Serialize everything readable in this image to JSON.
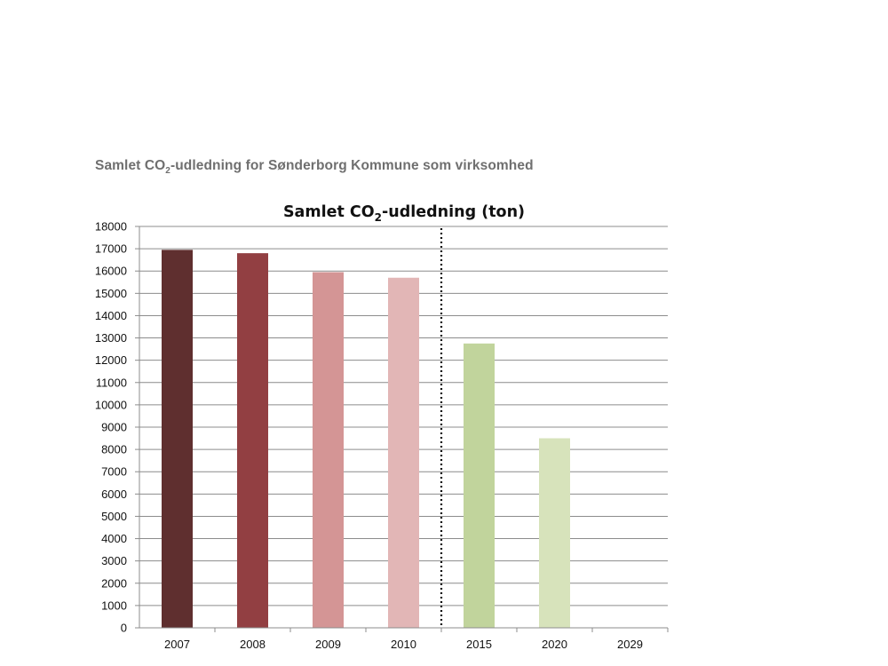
{
  "caption": {
    "prefix": "Samlet CO",
    "sub": "2",
    "suffix": "-udledning for Sønderborg Kommune som virksomhed"
  },
  "chart_data": {
    "type": "bar",
    "title_prefix": "Samlet CO",
    "title_sub": "2",
    "title_suffix": "-udledning (ton)",
    "categories": [
      "2007",
      "2008",
      "2009",
      "2010",
      "2015",
      "2020",
      "2029"
    ],
    "values": [
      16950,
      16800,
      15950,
      15700,
      12750,
      8500,
      0
    ],
    "bar_colors": [
      "#5f2f2f",
      "#923f42",
      "#d49595",
      "#e2b6b6",
      "#c1d49c",
      "#d7e3bb",
      "#ffffff"
    ],
    "ylim": [
      0,
      18000
    ],
    "ytick_step": 1000,
    "yticks": [
      "0",
      "1000",
      "2000",
      "3000",
      "4000",
      "5000",
      "6000",
      "7000",
      "8000",
      "9000",
      "10000",
      "11000",
      "12000",
      "13000",
      "14000",
      "15000",
      "16000",
      "17000",
      "18000"
    ],
    "grid": true,
    "divider": {
      "style": "dotted",
      "between": [
        "2010",
        "2015"
      ]
    },
    "xlabel": "",
    "ylabel": ""
  }
}
